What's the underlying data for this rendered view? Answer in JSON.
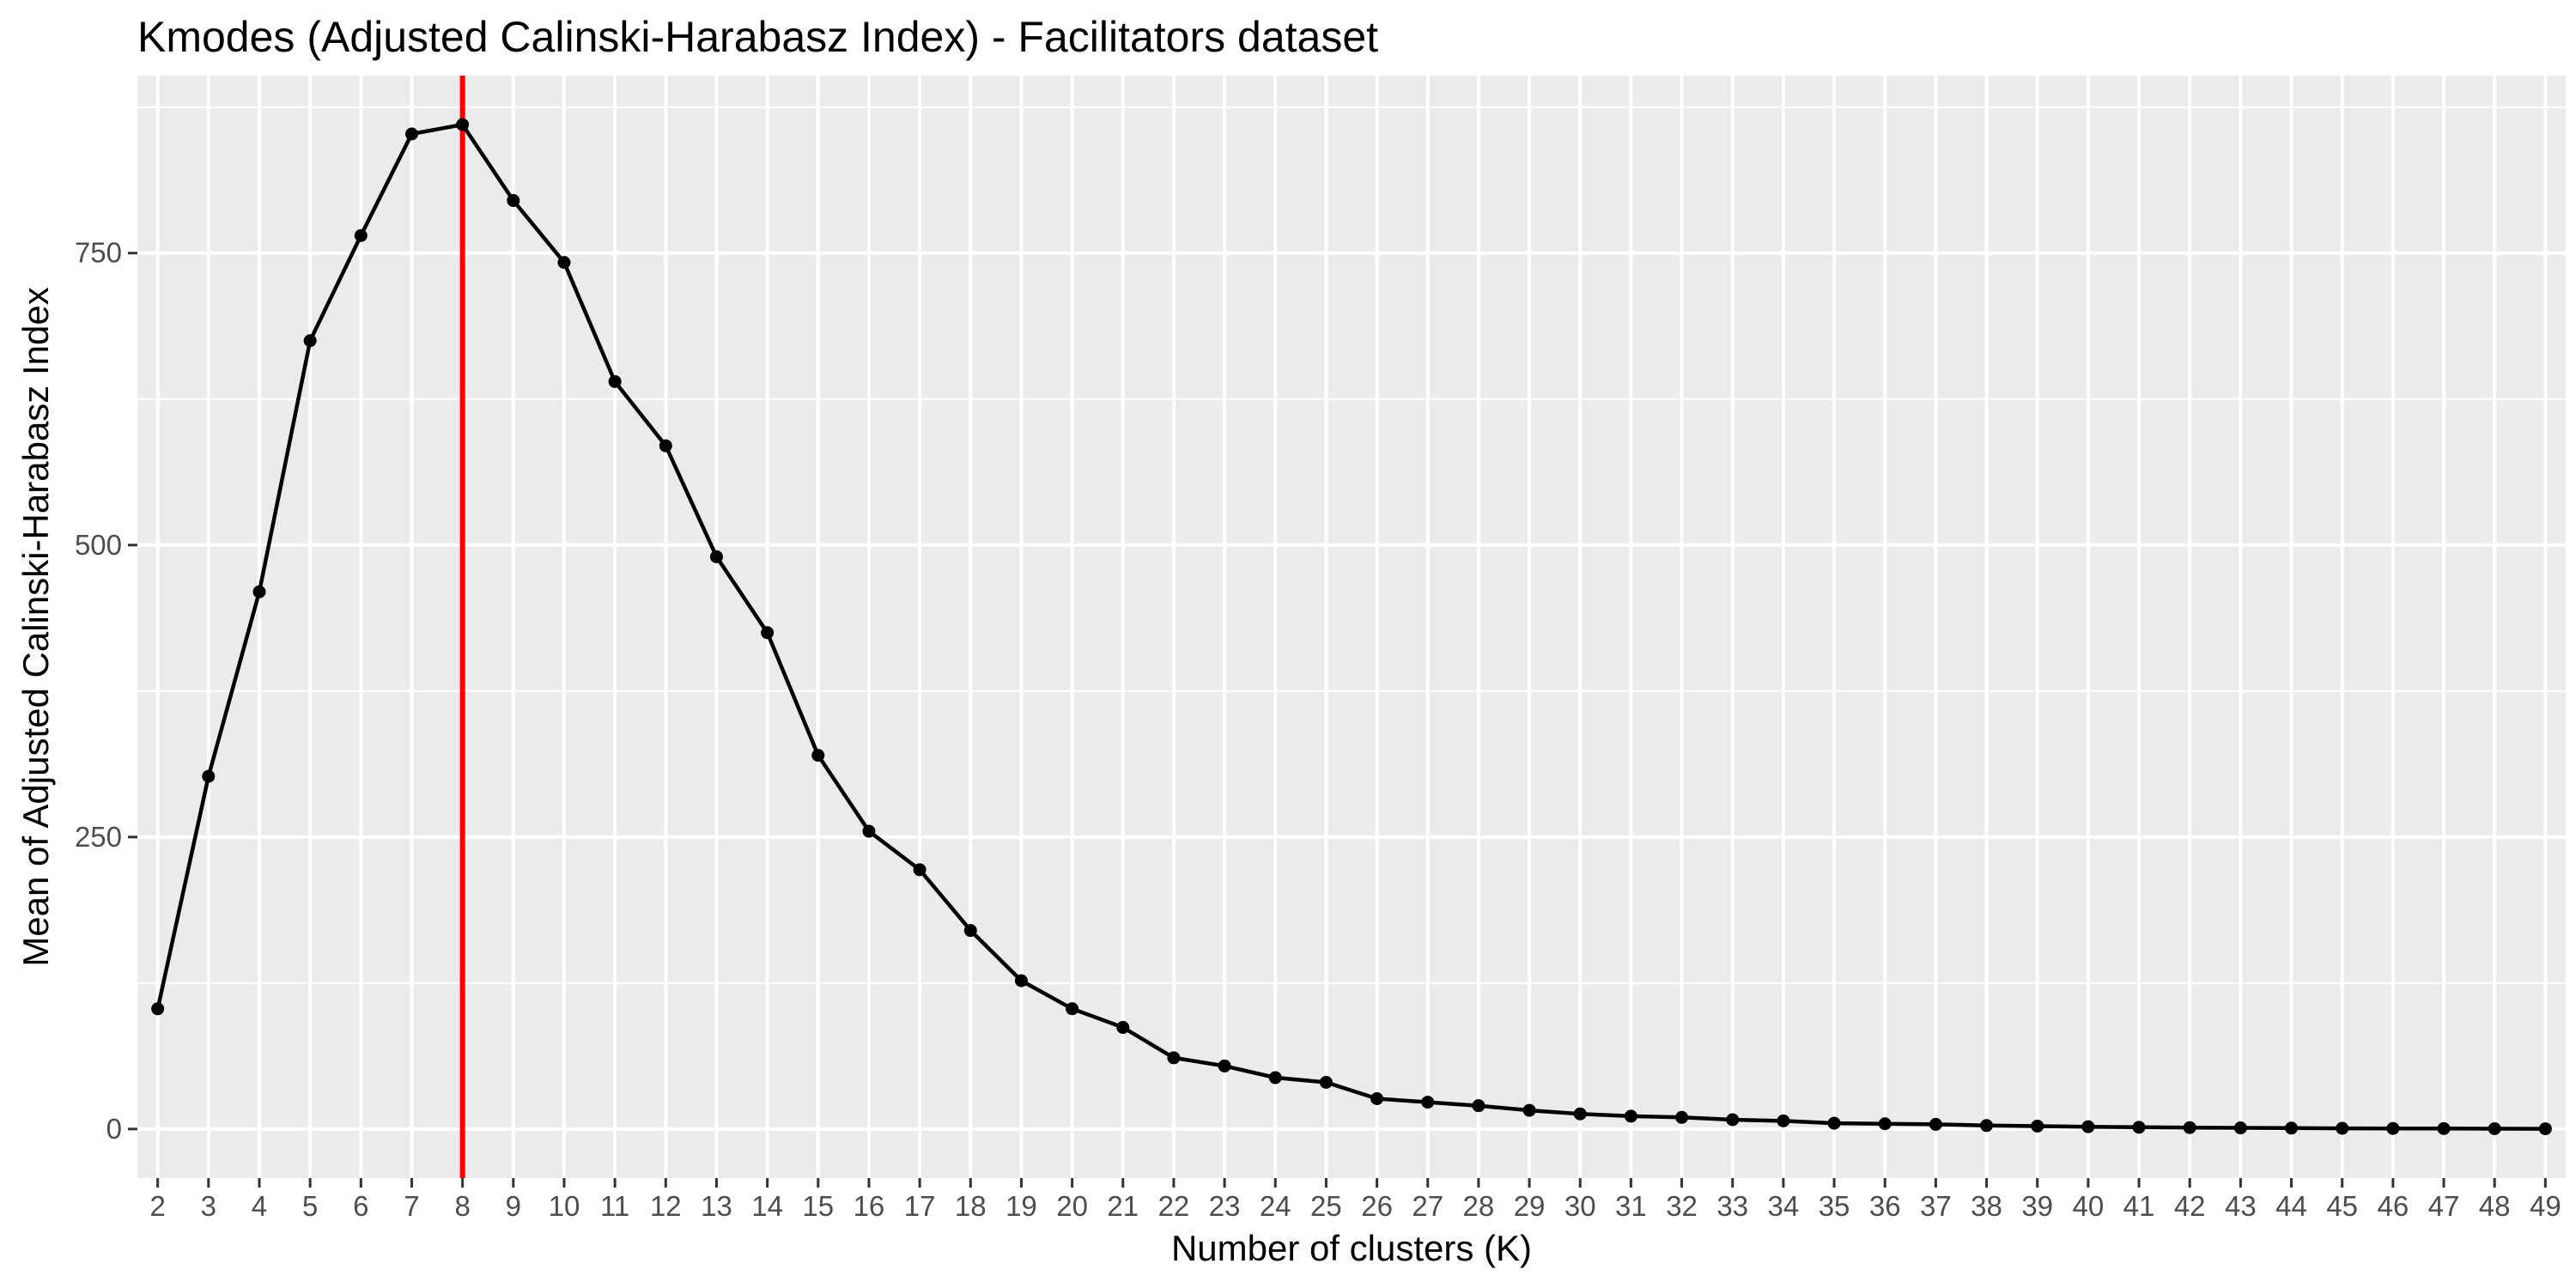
{
  "chart_data": {
    "type": "line",
    "title": "Kmodes (Adjusted Calinski-Harabasz Index) - Facilitators dataset",
    "xlabel": "Number of clusters (K)",
    "ylabel": "Mean of Adjusted Calinski-Harabasz Index",
    "x": [
      2,
      3,
      4,
      5,
      6,
      7,
      8,
      9,
      10,
      11,
      12,
      13,
      14,
      15,
      16,
      17,
      18,
      19,
      20,
      21,
      22,
      23,
      24,
      25,
      26,
      27,
      28,
      29,
      30,
      31,
      32,
      33,
      34,
      35,
      36,
      37,
      38,
      39,
      40,
      41,
      42,
      43,
      44,
      45,
      46,
      47,
      48,
      49
    ],
    "series": [
      {
        "values": [
          103,
          302,
          460,
          675,
          765,
          852,
          860,
          795,
          742,
          640,
          585,
          490,
          425,
          320,
          255,
          222,
          170,
          127,
          103,
          87,
          61,
          54,
          44,
          40,
          26,
          23,
          20,
          16,
          13,
          11,
          10,
          8,
          7,
          5,
          4.5,
          4,
          3,
          2.5,
          2,
          1.5,
          1.2,
          1,
          0.8,
          0.6,
          0.5,
          0.4,
          0.3,
          0.2
        ],
        "color": "#000000"
      }
    ],
    "xlim": [
      1.6,
      49.4
    ],
    "ylim": [
      -42,
      902
    ],
    "yticks": [
      0,
      250,
      500,
      750
    ],
    "grid": true,
    "legend": "none",
    "annotations": [
      {
        "type": "vline",
        "x": 8,
        "color": "#ff0000"
      }
    ],
    "panel_background": "#ebebeb",
    "grid_color": "#ffffff"
  }
}
